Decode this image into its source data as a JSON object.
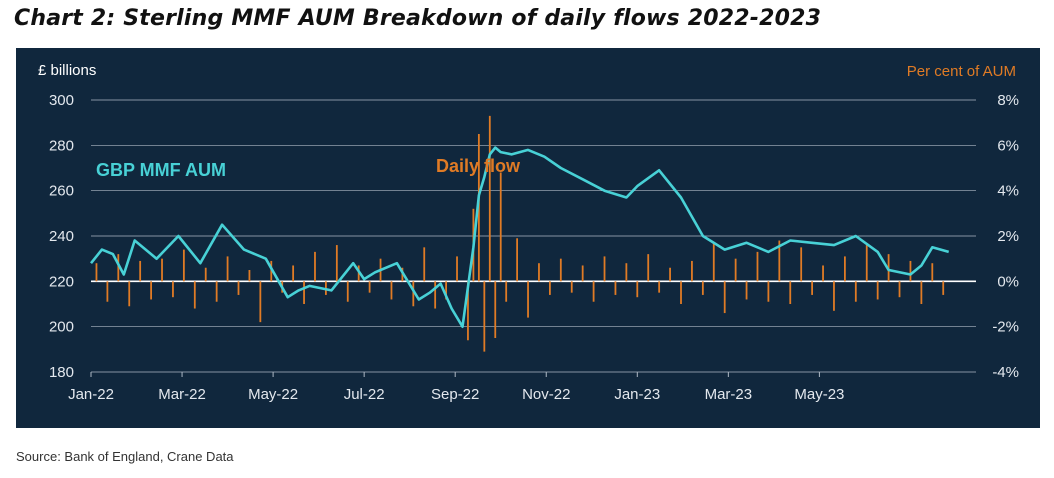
{
  "title": "Chart 2: Sterling MMF AUM Breakdown of daily flows 2022-2023",
  "source": "Source: Bank of England, Crane Data",
  "colors": {
    "background": "#10273d",
    "aum_line": "#48d1d6",
    "daily_flow": "#e07b25",
    "text": "#e3e8ee"
  },
  "chart_data": {
    "type": "line",
    "left_axis_label": "£ billions",
    "right_axis_label": "Per cent of AUM",
    "left_ylim": [
      180,
      300
    ],
    "right_ylim": [
      -4,
      8
    ],
    "left_ticks": [
      "300",
      "280",
      "260",
      "240",
      "220",
      "200",
      "180"
    ],
    "right_ticks": [
      "8%",
      "6%",
      "4%",
      "2%",
      "0%",
      "-2%",
      "-4%"
    ],
    "x_tick_labels": [
      "Jan-22",
      "Mar-22",
      "May-22",
      "Jul-22",
      "Sep-22",
      "Nov-22",
      "Jan-23",
      "Mar-23",
      "May-23"
    ],
    "grid": "horizontal",
    "annotations": [
      "GBP MMF AUM",
      "Daily flow"
    ],
    "series": [
      {
        "name": "GBP MMF AUM",
        "axis": "left",
        "x": [
          2022.0,
          2022.02,
          2022.04,
          2022.06,
          2022.08,
          2022.12,
          2022.16,
          2022.2,
          2022.24,
          2022.28,
          2022.32,
          2022.36,
          2022.38,
          2022.4,
          2022.44,
          2022.48,
          2022.5,
          2022.52,
          2022.56,
          2022.6,
          2022.62,
          2022.64,
          2022.66,
          2022.68,
          2022.7,
          2022.71,
          2022.72,
          2022.73,
          2022.74,
          2022.75,
          2022.77,
          2022.8,
          2022.83,
          2022.86,
          2022.9,
          2022.94,
          2022.98,
          2023.0,
          2023.04,
          2023.08,
          2023.12,
          2023.16,
          2023.2,
          2023.24,
          2023.28,
          2023.32,
          2023.36,
          2023.4,
          2023.44,
          2023.46,
          2023.5,
          2023.52,
          2023.54,
          2023.57
        ],
        "values": [
          228,
          234,
          232,
          223,
          238,
          230,
          240,
          228,
          245,
          234,
          230,
          213,
          216,
          218,
          216,
          228,
          221,
          224,
          228,
          212,
          215,
          219,
          208,
          200,
          235,
          258,
          266,
          276,
          279,
          277,
          276,
          278,
          275,
          270,
          265,
          260,
          257,
          262,
          269,
          257,
          240,
          234,
          237,
          233,
          238,
          237,
          236,
          240,
          233,
          225,
          223,
          227,
          235,
          233
        ]
      },
      {
        "name": "Daily flow",
        "axis": "right",
        "type": "bar",
        "x": [
          2022.01,
          2022.03,
          2022.05,
          2022.07,
          2022.09,
          2022.11,
          2022.13,
          2022.15,
          2022.17,
          2022.19,
          2022.21,
          2022.23,
          2022.25,
          2022.27,
          2022.29,
          2022.31,
          2022.33,
          2022.35,
          2022.37,
          2022.39,
          2022.41,
          2022.43,
          2022.45,
          2022.47,
          2022.49,
          2022.51,
          2022.53,
          2022.55,
          2022.57,
          2022.59,
          2022.61,
          2022.63,
          2022.65,
          2022.67,
          2022.69,
          2022.7,
          2022.71,
          2022.72,
          2022.73,
          2022.74,
          2022.75,
          2022.76,
          2022.78,
          2022.8,
          2022.82,
          2022.84,
          2022.86,
          2022.88,
          2022.9,
          2022.92,
          2022.94,
          2022.96,
          2022.98,
          2023.0,
          2023.02,
          2023.04,
          2023.06,
          2023.08,
          2023.1,
          2023.12,
          2023.14,
          2023.16,
          2023.18,
          2023.2,
          2023.22,
          2023.24,
          2023.26,
          2023.28,
          2023.3,
          2023.32,
          2023.34,
          2023.36,
          2023.38,
          2023.4,
          2023.42,
          2023.44,
          2023.46,
          2023.48,
          2023.5,
          2023.52,
          2023.54,
          2023.56
        ],
        "values": [
          0.8,
          -0.9,
          1.2,
          -1.1,
          0.9,
          -0.8,
          1.0,
          -0.7,
          1.4,
          -1.2,
          0.6,
          -0.9,
          1.1,
          -0.6,
          0.5,
          -1.8,
          0.9,
          -0.5,
          0.7,
          -1.0,
          1.3,
          -0.6,
          1.6,
          -0.9,
          0.7,
          -0.5,
          1.0,
          -0.8,
          0.6,
          -1.1,
          1.5,
          -1.2,
          -0.8,
          1.1,
          -2.6,
          3.2,
          6.5,
          -3.1,
          7.3,
          -2.5,
          4.8,
          -0.9,
          1.9,
          -1.6,
          0.8,
          -0.6,
          1.0,
          -0.5,
          0.7,
          -0.9,
          1.1,
          -0.6,
          0.8,
          -0.7,
          1.2,
          -0.5,
          0.6,
          -1.0,
          0.9,
          -0.6,
          1.7,
          -1.4,
          1.0,
          -0.8,
          1.3,
          -0.9,
          1.8,
          -1.0,
          1.5,
          -0.6,
          0.7,
          -1.3,
          1.1,
          -0.9,
          1.6,
          -0.8,
          1.2,
          -0.7,
          0.9,
          -1.0,
          0.8,
          -0.6
        ]
      }
    ]
  }
}
